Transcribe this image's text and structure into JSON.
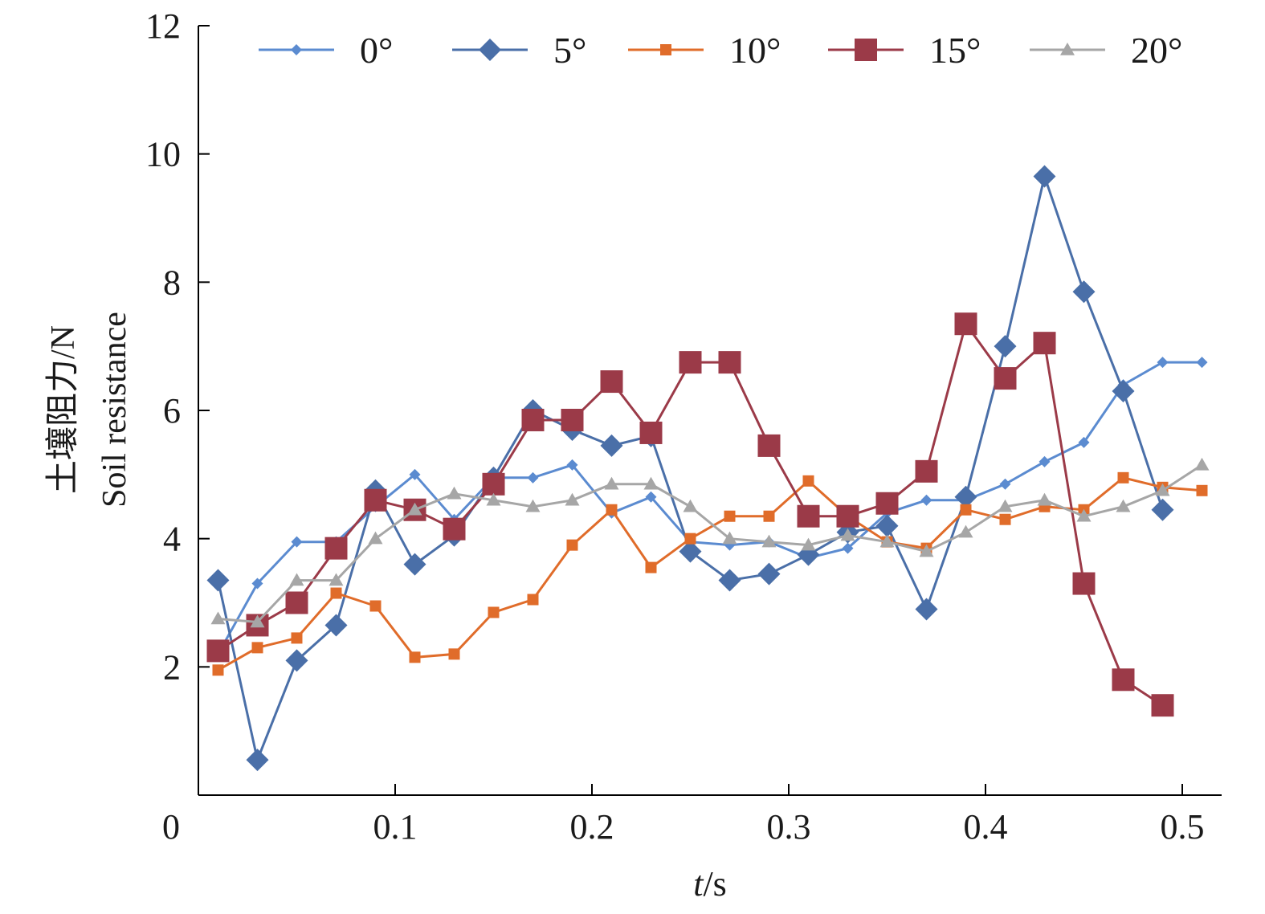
{
  "chart_data": {
    "type": "line",
    "xlabel_italic": "t",
    "xlabel_unit": "/s",
    "ylabel_zh": "土壤阻力/N",
    "ylabel_en": "Soil resistance",
    "origin_label": "0",
    "xlim": [
      0,
      0.52
    ],
    "ylim": [
      0,
      12
    ],
    "xticks": [
      0.1,
      0.2,
      0.3,
      0.4,
      0.5
    ],
    "xtick_labels": [
      "0.1",
      "0.2",
      "0.3",
      "0.4",
      "0.5"
    ],
    "yticks": [
      2,
      4,
      6,
      8,
      10,
      12
    ],
    "ytick_labels": [
      "2",
      "4",
      "6",
      "8",
      "10",
      "12"
    ],
    "grid": false,
    "legend_position": "top",
    "x": [
      0.01,
      0.03,
      0.05,
      0.07,
      0.09,
      0.11,
      0.13,
      0.15,
      0.17,
      0.19,
      0.21,
      0.23,
      0.25,
      0.27,
      0.29,
      0.31,
      0.33,
      0.35,
      0.37,
      0.39,
      0.41,
      0.43,
      0.45,
      0.47,
      0.49,
      0.51
    ],
    "series": [
      {
        "name": "0°",
        "color": "#5b8bd0",
        "marker": "diamond-small",
        "values": [
          2.2,
          3.3,
          3.95,
          3.95,
          4.5,
          5.0,
          4.3,
          4.95,
          4.95,
          5.15,
          4.4,
          4.65,
          3.95,
          3.9,
          3.95,
          3.7,
          3.85,
          4.4,
          4.6,
          4.6,
          4.85,
          5.2,
          5.5,
          6.4,
          6.75,
          6.75
        ]
      },
      {
        "name": "5°",
        "color": "#4a6fa8",
        "marker": "diamond-large",
        "values": [
          3.35,
          0.55,
          2.1,
          2.65,
          4.75,
          3.6,
          4.05,
          4.95,
          6.0,
          5.7,
          5.45,
          5.6,
          3.8,
          3.35,
          3.45,
          3.75,
          4.1,
          4.2,
          2.9,
          4.65,
          7.0,
          9.65,
          7.85,
          6.3,
          4.45,
          null
        ]
      },
      {
        "name": "10°",
        "color": "#e06c2a",
        "marker": "square-small",
        "values": [
          1.95,
          2.3,
          2.45,
          3.15,
          2.95,
          2.15,
          2.2,
          2.85,
          3.05,
          3.9,
          4.45,
          3.55,
          4.0,
          4.35,
          4.35,
          4.9,
          4.35,
          3.95,
          3.85,
          4.45,
          4.3,
          4.5,
          4.45,
          4.95,
          4.8,
          4.75
        ]
      },
      {
        "name": "15°",
        "color": "#9b3a48",
        "marker": "square-large",
        "values": [
          2.25,
          2.65,
          3.0,
          3.85,
          4.6,
          4.45,
          4.15,
          4.85,
          5.85,
          5.85,
          6.45,
          5.65,
          6.75,
          6.75,
          5.45,
          4.35,
          4.35,
          4.55,
          5.05,
          7.35,
          6.5,
          7.05,
          3.3,
          1.8,
          1.4,
          null
        ]
      },
      {
        "name": "20°",
        "color": "#a6a6a6",
        "marker": "triangle",
        "values": [
          2.75,
          2.7,
          3.35,
          3.35,
          4.0,
          4.45,
          4.7,
          4.6,
          4.5,
          4.6,
          4.85,
          4.85,
          4.5,
          4.0,
          3.95,
          3.9,
          4.05,
          3.95,
          3.8,
          4.1,
          4.5,
          4.6,
          4.35,
          4.5,
          4.75,
          5.15
        ]
      }
    ]
  }
}
